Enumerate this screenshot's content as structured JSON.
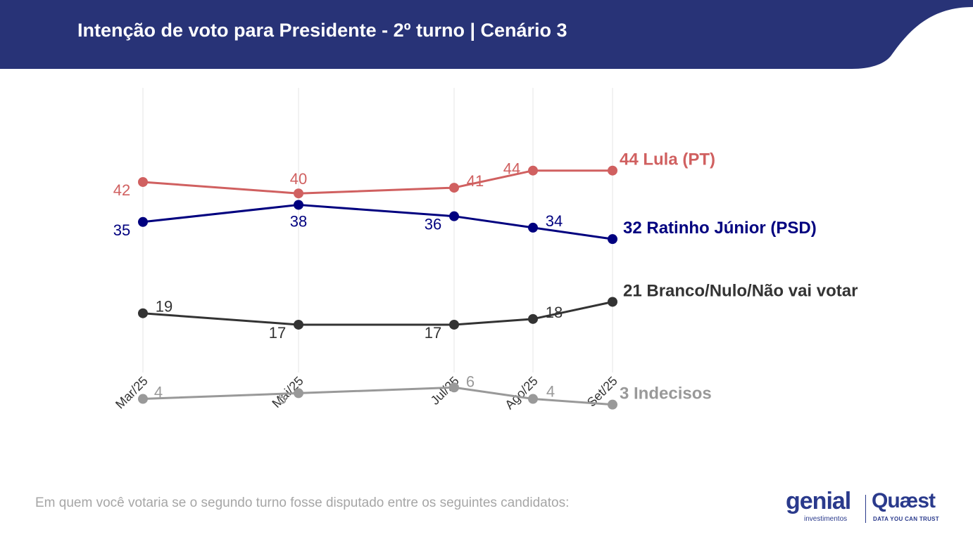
{
  "header": {
    "title": "Intenção de voto para Presidente - 2º turno | Cenário 3",
    "background_color": "#283377"
  },
  "footnote": "Em quem você votaria se o segundo turno fosse disputado entre os seguintes candidatos:",
  "logos": {
    "genial": "genial",
    "genial_sub": "investimentos",
    "quaest": "Quæst",
    "quaest_sub": "DATA YOU CAN TRUST"
  },
  "chart_data": {
    "type": "line",
    "x": [
      "Mar/25",
      "Mai/25",
      "Jul/25",
      "Ago/25",
      "Set/25"
    ],
    "ylim": [
      0,
      48
    ],
    "grid": "vertical",
    "series": [
      {
        "name": "Lula (PT)",
        "color": "#d06060",
        "values": [
          42,
          40,
          41,
          44,
          44
        ],
        "end_label": "44 Lula (PT)"
      },
      {
        "name": "Ratinho Júnior (PSD)",
        "color": "#00007f",
        "values": [
          35,
          38,
          36,
          34,
          32
        ],
        "end_label": "32 Ratinho Júnior (PSD)"
      },
      {
        "name": "Branco/Nulo/Não vai votar",
        "color": "#333333",
        "values": [
          19,
          17,
          17,
          18,
          21
        ],
        "end_label": "21 Branco/Nulo/Não vai votar"
      },
      {
        "name": "Indecisos",
        "color": "#999999",
        "values": [
          4,
          5,
          6,
          4,
          3
        ],
        "end_label": "3 Indecisos"
      }
    ]
  }
}
